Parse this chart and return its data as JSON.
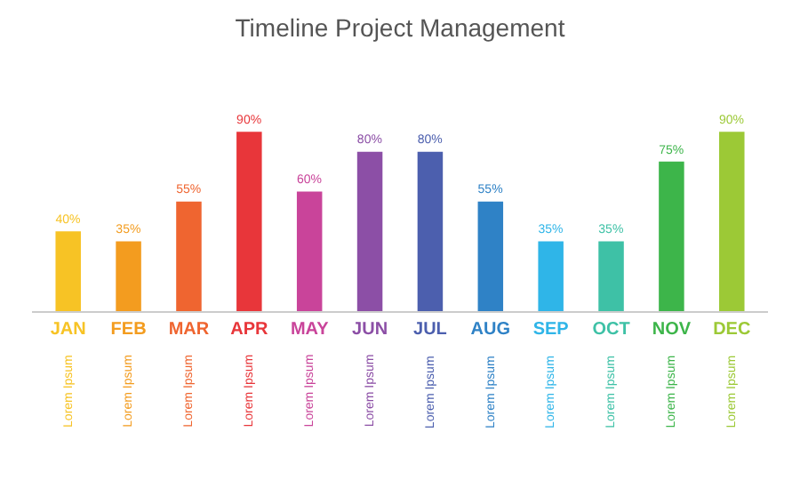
{
  "chart_data": {
    "type": "bar",
    "title": "Timeline Project Management",
    "categories": [
      "JAN",
      "FEB",
      "MAR",
      "APR",
      "MAY",
      "JUN",
      "JUL",
      "AUG",
      "SEP",
      "OCT",
      "NOV",
      "DEC"
    ],
    "values": [
      40,
      35,
      55,
      90,
      60,
      80,
      80,
      55,
      35,
      35,
      75,
      90
    ],
    "value_labels": [
      "40%",
      "35%",
      "55%",
      "90%",
      "60%",
      "80%",
      "80%",
      "55%",
      "35%",
      "35%",
      "75%",
      "90%"
    ],
    "colors": [
      "#f7c325",
      "#f39c1f",
      "#ef6530",
      "#e8363a",
      "#c9449a",
      "#8c4fa6",
      "#4c5fae",
      "#2f82c6",
      "#2fb5e8",
      "#3ec1a6",
      "#3db54a",
      "#9cc936"
    ],
    "annotations": [
      "Lorem Ipsum",
      "Lorem Ipsum",
      "Lorem Ipsum",
      "Lorem Ipsum",
      "Lorem Ipsum",
      "Lorem Ipsum",
      "Lorem Ipsum",
      "Lorem Ipsum",
      "Lorem Ipsum",
      "Lorem Ipsum",
      "Lorem Ipsum",
      "Lorem Ipsum"
    ],
    "grid": false,
    "legend": false
  }
}
